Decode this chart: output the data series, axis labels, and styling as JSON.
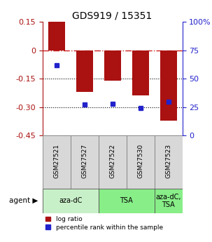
{
  "title": "GDS919 / 15351",
  "samples": [
    "GSM27521",
    "GSM27527",
    "GSM27522",
    "GSM27530",
    "GSM27523"
  ],
  "log_ratios": [
    0.15,
    -0.22,
    -0.16,
    -0.24,
    -0.37
  ],
  "percentiles": [
    62,
    27,
    28,
    24,
    30
  ],
  "bar_color": "#AA1111",
  "dot_color": "#2222CC",
  "left_yticks": [
    0.15,
    0.0,
    -0.15,
    -0.3,
    -0.45
  ],
  "left_ytick_labels": [
    "0.15",
    "0",
    "-0.15",
    "-0.30",
    "-0.45"
  ],
  "right_yticks": [
    100,
    75,
    50,
    25,
    0
  ],
  "right_ytick_labels": [
    "100%",
    "75",
    "50",
    "25",
    "0"
  ],
  "hline_zero_color": "#CC2222",
  "hline_dotted_values": [
    -0.15,
    -0.3
  ],
  "agent_groups": [
    {
      "label": "aza-dC",
      "indices": [
        0,
        1
      ],
      "color": "#c8f0c8"
    },
    {
      "label": "TSA",
      "indices": [
        2,
        3
      ],
      "color": "#88ee88"
    },
    {
      "label": "aza-dC,\nTSA",
      "indices": [
        4
      ],
      "color": "#88ee88"
    }
  ],
  "bar_width": 0.6,
  "figsize": [
    3.03,
    3.45
  ],
  "dpi": 100
}
